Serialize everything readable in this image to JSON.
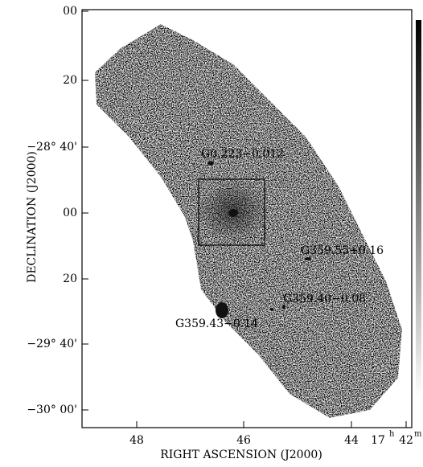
{
  "figure": {
    "x_axis_label": "RIGHT ASCENSION (J2000)",
    "y_axis_label": "DECLINATION (J2000)",
    "x_ticks": [
      "48",
      "46",
      "44"
    ],
    "x_last_tick": {
      "hours": "17",
      "h": "h",
      "minutes": "42",
      "m": "m"
    },
    "y_ticks": [
      "00",
      "20",
      "−28° 40'",
      "00",
      "20",
      "−29° 40'",
      "−30° 00'"
    ],
    "sources": [
      "G0.223−0.012",
      "G359.55+0.16",
      "G359.40−0.08",
      "G359.43−0.14"
    ]
  }
}
